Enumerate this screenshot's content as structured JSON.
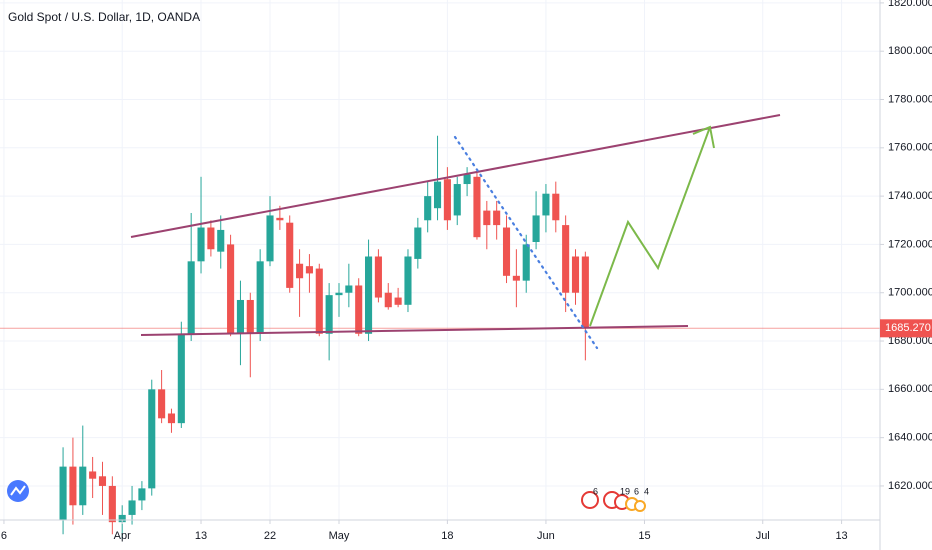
{
  "chart_data": {
    "type": "candlestick",
    "title": "Gold Spot / U.S. Dollar, 1D, OANDA",
    "up_color": "#26a69a",
    "down_color": "#ef5350",
    "grid": true,
    "x": [
      -6,
      -5,
      -4,
      -3,
      -2,
      -1,
      0,
      1,
      2,
      3,
      4,
      5,
      6,
      7,
      8,
      9,
      10,
      11,
      12,
      13,
      14,
      15,
      16,
      17,
      18,
      19,
      20,
      21,
      22,
      23,
      24,
      25,
      26,
      27,
      28,
      29,
      30,
      31,
      32,
      33,
      34,
      35,
      36,
      37,
      38,
      39,
      40,
      41,
      42,
      43,
      44,
      45,
      46,
      47
    ],
    "open": [
      1606,
      1628,
      1612,
      1626,
      1624,
      1620,
      1605,
      1608,
      1614,
      1619,
      1660,
      1650,
      1646,
      1683,
      1713,
      1727,
      1717,
      1720,
      1683,
      1697,
      1683,
      1713,
      1731,
      1729,
      1712,
      1711,
      1710,
      1683,
      1699,
      1700,
      1703,
      1683,
      1715,
      1700,
      1698,
      1695,
      1714,
      1730,
      1735,
      1747,
      1732,
      1745,
      1748,
      1734,
      1734,
      1727,
      1707,
      1705,
      1721,
      1732,
      1741,
      1728,
      1715,
      1715
    ],
    "high": [
      1636,
      1640,
      1645,
      1632,
      1630,
      1624,
      1612,
      1620,
      1622,
      1664,
      1668,
      1652,
      1688,
      1733,
      1748,
      1730,
      1732,
      1724,
      1705,
      1700,
      1718,
      1740,
      1736,
      1732,
      1718,
      1716,
      1712,
      1704,
      1704,
      1712,
      1706,
      1722,
      1718,
      1704,
      1702,
      1718,
      1731,
      1746,
      1765,
      1752,
      1748,
      1752,
      1750,
      1738,
      1738,
      1732,
      1718,
      1724,
      1742,
      1745,
      1746,
      1732,
      1718,
      1717
    ],
    "low": [
      1600,
      1604,
      1608,
      1615,
      1608,
      1600,
      1598,
      1604,
      1610,
      1616,
      1646,
      1642,
      1644,
      1680,
      1708,
      1715,
      1710,
      1682,
      1670,
      1665,
      1680,
      1711,
      1726,
      1700,
      1690,
      1700,
      1682,
      1672,
      1690,
      1694,
      1682,
      1680,
      1696,
      1693,
      1694,
      1692,
      1710,
      1725,
      1730,
      1726,
      1728,
      1740,
      1722,
      1718,
      1722,
      1704,
      1694,
      1700,
      1718,
      1725,
      1725,
      1692,
      1695,
      1672
    ],
    "close": [
      1628,
      1612,
      1628,
      1623,
      1620,
      1605,
      1608,
      1614,
      1619,
      1660,
      1648,
      1646,
      1683,
      1713,
      1727,
      1718,
      1726,
      1683,
      1697,
      1683,
      1713,
      1732,
      1730,
      1702,
      1706,
      1708,
      1683,
      1699,
      1700,
      1703,
      1683,
      1715,
      1698,
      1694,
      1695,
      1715,
      1727,
      1740,
      1746,
      1730,
      1745,
      1749,
      1723,
      1728,
      1728,
      1707,
      1705,
      1720,
      1732,
      1741,
      1730,
      1700,
      1700,
      1685.27
    ],
    "xlim": [
      -12.4,
      76.9
    ],
    "ylim": [
      1605.9,
      1821.2
    ],
    "xticks": [
      {
        "value": -12,
        "label": "6"
      },
      {
        "value": 0,
        "label": "Apr"
      },
      {
        "value": 8,
        "label": "13"
      },
      {
        "value": 15,
        "label": "22"
      },
      {
        "value": 22,
        "label": "May"
      },
      {
        "value": 33,
        "label": "18"
      },
      {
        "value": 43,
        "label": "Jun"
      },
      {
        "value": 53,
        "label": "15"
      },
      {
        "value": 65,
        "label": "Jul"
      },
      {
        "value": 73,
        "label": "13"
      }
    ],
    "yticks": [
      {
        "value": 1620,
        "label": "1620.000"
      },
      {
        "value": 1640,
        "label": "1640.000"
      },
      {
        "value": 1660,
        "label": "1660.000"
      },
      {
        "value": 1680,
        "label": "1680.000"
      },
      {
        "value": 1700,
        "label": "1700.000"
      },
      {
        "value": 1720,
        "label": "1720.000"
      },
      {
        "value": 1740,
        "label": "1740.000"
      },
      {
        "value": 1760,
        "label": "1760.000"
      },
      {
        "value": 1780,
        "label": "1780.000"
      },
      {
        "value": 1800,
        "label": "1800.000"
      },
      {
        "value": 1820,
        "label": "1820.000"
      }
    ],
    "last_price": {
      "value": 1685.27,
      "label": "1685.270",
      "color": "#ef5350"
    },
    "events": [
      "6",
      "19",
      "6",
      "4"
    ]
  }
}
